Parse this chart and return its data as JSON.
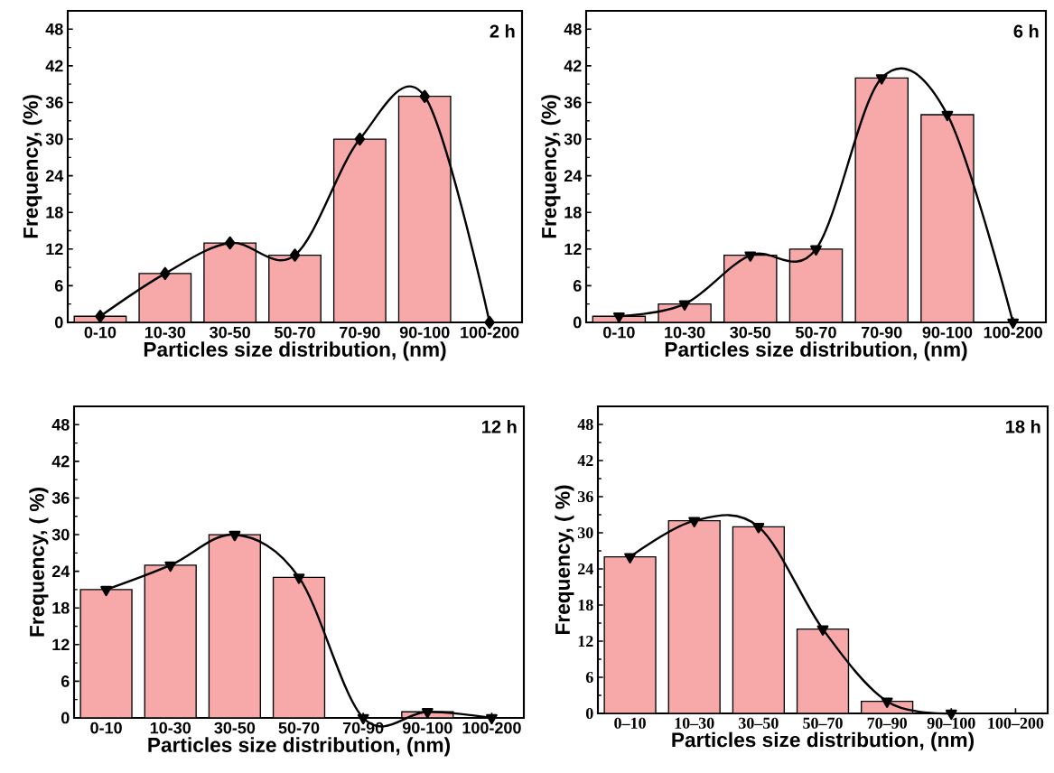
{
  "chart_data": [
    {
      "type": "bar",
      "categories": [
        "0-10",
        "10-30",
        "30-50",
        "50-70",
        "70-90",
        "90-100",
        "100-200"
      ],
      "xlabel": "Particles size distribution, (nm)",
      "ylabel": "Frequency, (%)",
      "annotations": [
        "2 h"
      ],
      "ylim": [
        0,
        51
      ],
      "yticks": [
        0,
        6,
        12,
        18,
        24,
        30,
        36,
        42,
        48
      ],
      "marker": "diamond",
      "series": [
        {
          "color": "#f7a8a8",
          "values": [
            1,
            8,
            13,
            11,
            30,
            37,
            null
          ]
        },
        {
          "type": "line",
          "color": "#000000",
          "values": [
            1,
            8,
            13,
            11,
            30,
            37,
            0
          ]
        }
      ]
    },
    {
      "type": "bar",
      "categories": [
        "0-10",
        "10-30",
        "30-50",
        "50-70",
        "70-90",
        "90-100",
        "100-200"
      ],
      "xlabel": "Particles size distribution, (nm)",
      "ylabel": "Frequency, (%)",
      "annotations": [
        "6 h"
      ],
      "ylim": [
        0,
        51
      ],
      "yticks": [
        0,
        6,
        12,
        18,
        24,
        30,
        36,
        42,
        48
      ],
      "marker": "triangle",
      "series": [
        {
          "color": "#f7a8a8",
          "values": [
            1,
            3,
            11,
            12,
            40,
            34,
            null
          ]
        },
        {
          "type": "line",
          "color": "#000000",
          "values": [
            1,
            3,
            11,
            12,
            40,
            34,
            0
          ]
        }
      ]
    },
    {
      "type": "bar",
      "categories": [
        "0-10",
        "10-30",
        "30-50",
        "50-70",
        "70-90",
        "90-100",
        "100-200"
      ],
      "xlabel": "Particles size distribution, (nm)",
      "ylabel": "Frequency, ( %)",
      "annotations": [
        "12 h"
      ],
      "ylim": [
        0,
        51
      ],
      "yticks": [
        0,
        6,
        12,
        18,
        24,
        30,
        36,
        42,
        48
      ],
      "marker": "triangle",
      "series": [
        {
          "color": "#f7a8a8",
          "values": [
            21,
            25,
            30,
            23,
            null,
            1,
            null
          ]
        },
        {
          "type": "line",
          "color": "#000000",
          "values": [
            21,
            25,
            30,
            23,
            0,
            1,
            0
          ]
        }
      ]
    },
    {
      "type": "bar",
      "categories": [
        "0–10",
        "10–30",
        "30–50",
        "50–70",
        "70–90",
        "90–100",
        "100–200"
      ],
      "xlabel": "Particles size distribution, (nm)",
      "ylabel": "Frequency, ( %)",
      "annotations": [
        "18 h"
      ],
      "ylim": [
        0,
        51
      ],
      "yticks": [
        0,
        6,
        12,
        18,
        24,
        30,
        36,
        42,
        48
      ],
      "marker": "triangle",
      "series": [
        {
          "color": "#f7a8a8",
          "values": [
            26,
            32,
            31,
            14,
            2,
            null,
            null
          ]
        },
        {
          "type": "line",
          "color": "#000000",
          "values": [
            26,
            32,
            31,
            14,
            2,
            0,
            null
          ]
        }
      ]
    }
  ]
}
